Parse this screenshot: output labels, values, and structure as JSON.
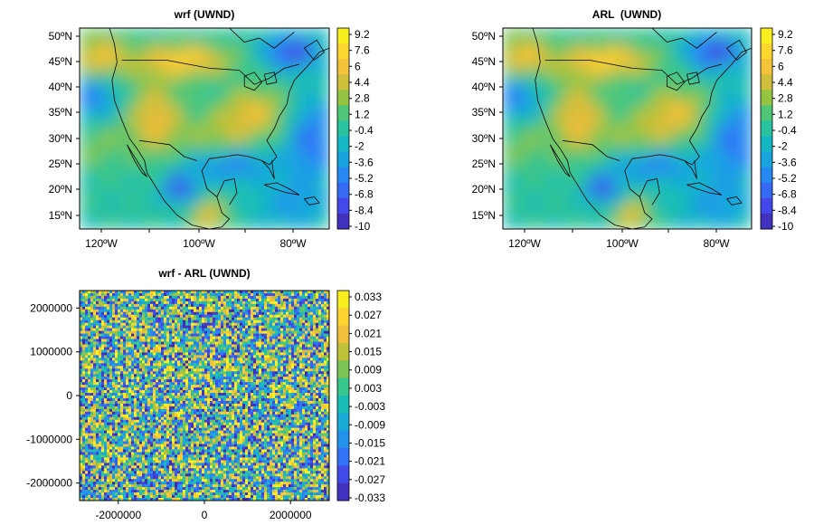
{
  "colormap": [
    "#3e26a8",
    "#4545e8",
    "#2f78fa",
    "#1aa1e5",
    "#15bcbd",
    "#3cc785",
    "#a1c43a",
    "#f1bb3c",
    "#fcd82f",
    "#f9fb15"
  ],
  "map_colors": {
    "coastline": "#000000",
    "axes": "#000000"
  },
  "chart_data": [
    {
      "type": "heatmap",
      "title": "wrf (UWND)",
      "projection": "Lambert conformal (CONUS)",
      "lon_ticks": [
        "120ºW",
        "100ºW",
        "80ºW"
      ],
      "lat_ticks": [
        "50ºN",
        "45ºN",
        "40ºN",
        "35ºN",
        "30ºN",
        "25ºN",
        "20ºN",
        "15ºN"
      ],
      "colorbar_ticks": [
        "9.2",
        "7.6",
        "6",
        "4.4",
        "2.8",
        "1.2",
        "-0.4",
        "-2",
        "-3.6",
        "-5.2",
        "-6.8",
        "-8.4",
        "-10"
      ],
      "value_range": [
        -10,
        9.2
      ],
      "pattern": "smooth"
    },
    {
      "type": "heatmap",
      "title": "ARL  (UWND)",
      "projection": "Lambert conformal (CONUS)",
      "lon_ticks": [
        "120ºW",
        "100ºW",
        "80ºW"
      ],
      "lat_ticks": [
        "50ºN",
        "45ºN",
        "40ºN",
        "35ºN",
        "30ºN",
        "25ºN",
        "20ºN",
        "15ºN"
      ],
      "colorbar_ticks": [
        "9.2",
        "7.6",
        "6",
        "4.4",
        "2.8",
        "1.2",
        "-0.4",
        "-2",
        "-3.6",
        "-5.2",
        "-6.8",
        "-8.4",
        "-10"
      ],
      "value_range": [
        -10,
        9.2
      ],
      "pattern": "smooth"
    },
    {
      "type": "heatmap",
      "title": "wrf - ARL (UWND)",
      "x_ticks": [
        "-2000000",
        "0",
        "2000000"
      ],
      "x_tick_values": [
        -2000000,
        0,
        2000000
      ],
      "y_ticks": [
        "2000000",
        "1000000",
        "0",
        "-1000000",
        "-2000000"
      ],
      "y_tick_values": [
        2000000,
        1000000,
        0,
        -1000000,
        -2000000
      ],
      "xlim": [
        -2900000,
        2900000
      ],
      "ylim": [
        -2400000,
        2400000
      ],
      "colorbar_ticks": [
        "0.033",
        "0.027",
        "0.021",
        "0.015",
        "0.009",
        "0.003",
        "-0.003",
        "-0.009",
        "-0.015",
        "-0.021",
        "-0.027",
        "-0.033"
      ],
      "value_range": [
        -0.036,
        0.036
      ],
      "pattern": "random noise"
    }
  ]
}
